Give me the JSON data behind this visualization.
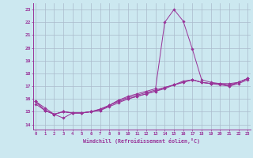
{
  "xlabel": "Windchill (Refroidissement éolien,°C)",
  "bg_color": "#cce8f0",
  "grid_color": "#aabbcc",
  "line_color": "#993399",
  "x_ticks": [
    0,
    1,
    2,
    3,
    4,
    5,
    6,
    7,
    8,
    9,
    10,
    11,
    12,
    13,
    14,
    15,
    16,
    17,
    18,
    19,
    20,
    21,
    22,
    23
  ],
  "y_ticks": [
    14,
    15,
    16,
    17,
    18,
    19,
    20,
    21,
    22,
    23
  ],
  "xlim": [
    -0.3,
    23.3
  ],
  "ylim": [
    13.6,
    23.5
  ],
  "series": [
    [
      15.8,
      15.3,
      14.8,
      14.5,
      14.9,
      14.9,
      15.0,
      15.1,
      15.5,
      15.9,
      16.2,
      16.4,
      16.6,
      16.8,
      22.0,
      23.0,
      22.1,
      19.9,
      17.5,
      17.3,
      17.2,
      17.0,
      17.3,
      17.6
    ],
    [
      15.8,
      15.1,
      14.8,
      15.0,
      14.9,
      14.9,
      15.0,
      15.2,
      15.5,
      15.8,
      16.0,
      16.2,
      16.4,
      16.6,
      16.8,
      17.1,
      17.3,
      17.5,
      17.3,
      17.2,
      17.2,
      17.1,
      17.3,
      17.6
    ],
    [
      15.8,
      15.1,
      14.8,
      15.0,
      14.9,
      14.9,
      15.0,
      15.2,
      15.5,
      15.9,
      16.1,
      16.3,
      16.5,
      16.7,
      16.9,
      17.1,
      17.4,
      17.5,
      17.3,
      17.2,
      17.2,
      17.2,
      17.3,
      17.6
    ],
    [
      15.6,
      15.1,
      14.8,
      15.0,
      14.9,
      14.9,
      15.0,
      15.1,
      15.4,
      15.7,
      16.0,
      16.2,
      16.4,
      16.6,
      16.9,
      17.1,
      17.3,
      17.5,
      17.3,
      17.2,
      17.1,
      17.0,
      17.2,
      17.5
    ]
  ]
}
